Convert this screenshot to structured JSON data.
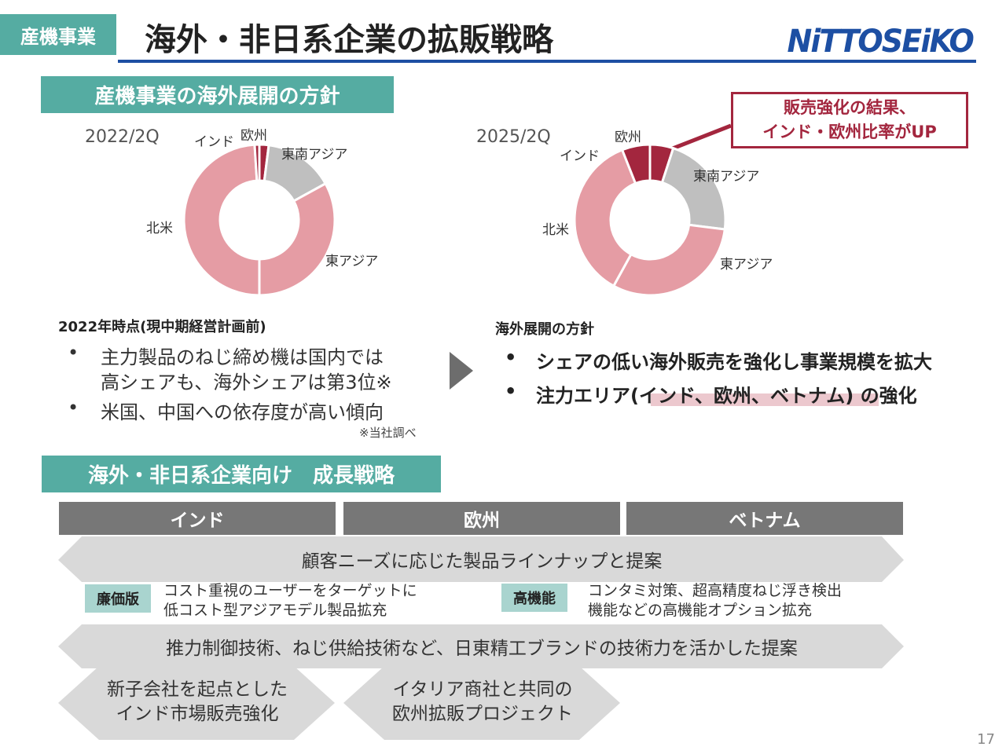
{
  "header": {
    "tag": "産機事業",
    "title": "海外・非日系企業の拡販戦略",
    "logo": "NiTTOSEiKO"
  },
  "section1": {
    "title": "産機事業の海外展開の方針"
  },
  "callout": {
    "line1": "販売強化の結果、",
    "line2": "インド・欧州比率がUP"
  },
  "chart_data": [
    {
      "type": "pie",
      "title": "2022/2Q",
      "categories": [
        "欧州",
        "東南アジア",
        "東アジア",
        "北米",
        "インド"
      ],
      "values": [
        2,
        15,
        33,
        49,
        1
      ],
      "colors": [
        "#a3263e",
        "#bfbfbf",
        "#e59ca4",
        "#e59ca4",
        "#a3263e"
      ]
    },
    {
      "type": "pie",
      "title": "2025/2Q",
      "categories": [
        "欧州",
        "東南アジア",
        "東アジア",
        "北米",
        "インド"
      ],
      "values": [
        5,
        22,
        31,
        36,
        6
      ],
      "colors": [
        "#a3263e",
        "#bfbfbf",
        "#e59ca4",
        "#e59ca4",
        "#a3263e"
      ]
    }
  ],
  "left_block": {
    "title": "2022年時点(現中期経営計画前)",
    "bullets": [
      "主力製品のねじ締め機は国内では",
      "高シェアも、海外シェアは第3位※",
      "米国、中国への依存度が高い傾向"
    ],
    "note": "※当社調べ"
  },
  "right_block": {
    "title": "海外展開の方針",
    "bullets": [
      "シェアの低い海外販売を強化し事業規模を拡大",
      "注力エリア(インド、欧州、ベトナム) の強化"
    ]
  },
  "section2": {
    "title": "海外・非日系企業向け　成長戦略"
  },
  "columns": [
    "インド",
    "欧州",
    "ベトナム"
  ],
  "arrow1": "顧客ニーズに応じた製品ラインナップと提案",
  "badge_left": {
    "label": "廉価版",
    "line1": "コスト重視のユーザーをターゲットに",
    "line2": "低コスト型アジアモデル製品拡充"
  },
  "badge_right": {
    "label": "高機能",
    "line1": "コンタミ対策、超高精度ねじ浮き検出",
    "line2": "機能などの高機能オプション拡充"
  },
  "arrow2": "推力制御技術、ねじ供給技術など、日東精工ブランドの技術力を活かした提案",
  "hex_left": {
    "line1": "新子会社を起点とした",
    "line2": "インド市場販売強化"
  },
  "hex_right": {
    "line1": "イタリア商社と共同の",
    "line2": "欧州拡販プロジェクト"
  },
  "page_number": "17"
}
